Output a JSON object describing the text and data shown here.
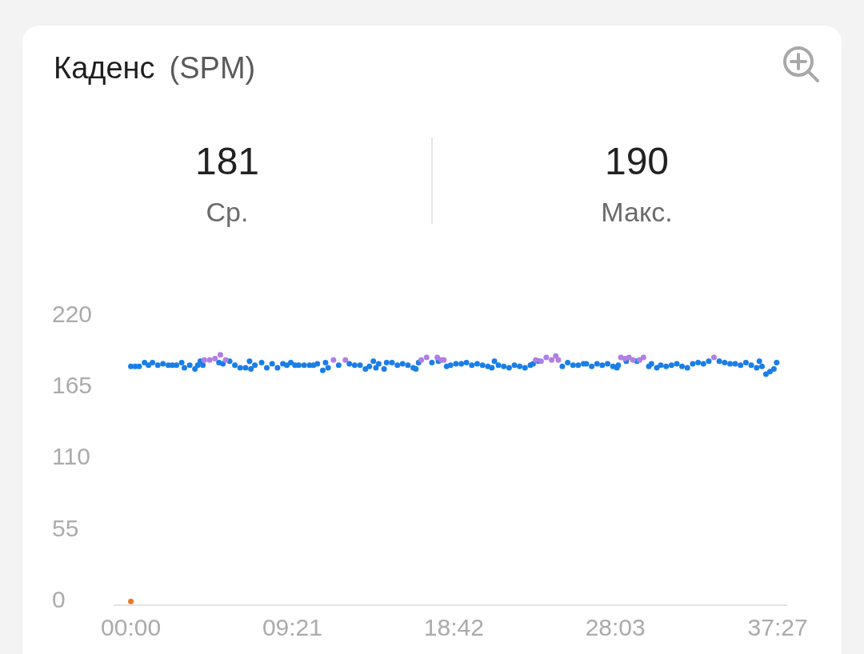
{
  "chart_data": {
    "type": "scatter",
    "title": "Каденс",
    "subtitle": "(SPM)",
    "annotations": [
      "181",
      "Ср.",
      "190",
      "Макс."
    ],
    "xlim": [
      -1,
      38
    ],
    "xticks": [
      {
        "value": 0,
        "label": "00:00"
      },
      {
        "value": 9.35,
        "label": "09:21"
      },
      {
        "value": 18.7,
        "label": "18:42"
      },
      {
        "value": 28.05,
        "label": "28:03"
      },
      {
        "value": 37.45,
        "label": "37:27"
      }
    ],
    "ylim": [
      -3,
      220
    ],
    "yticks": [
      0,
      55,
      110,
      165,
      220
    ],
    "marker": "circle",
    "series": [
      {
        "color": "#1a7ee6",
        "x": [
          0,
          0.25,
          0.48,
          0.79,
          1.02,
          1.25,
          1.56,
          1.86,
          2.17,
          2.4,
          2.64,
          2.94,
          3.1,
          3.41,
          3.71,
          3.87,
          4.02,
          4.17,
          5.1,
          5.33,
          5.72,
          6.02,
          6.33,
          6.64,
          6.87,
          6.95,
          7.18,
          7.57,
          7.87,
          8.18,
          8.49,
          8.8,
          9.03,
          9.26,
          9.5,
          9.72,
          10.03,
          10.34,
          10.57,
          10.8,
          11.11,
          11.27,
          11.42,
          12.03,
          12.65,
          12.96,
          13.27,
          13.58,
          13.81,
          14.04,
          14.19,
          14.35,
          14.66,
          14.81,
          15.12,
          15.43,
          15.73,
          16.04,
          16.35,
          16.5,
          16.66,
          17.43,
          17.81,
          18.28,
          18.51,
          18.82,
          19.13,
          19.43,
          19.74,
          20.05,
          20.36,
          20.67,
          20.9,
          21.05,
          21.28,
          21.59,
          21.9,
          22.21,
          22.51,
          22.82,
          23.13,
          23.29,
          23.59,
          24.98,
          25.29,
          25.6,
          25.9,
          26.21,
          26.37,
          26.68,
          26.99,
          27.29,
          27.6,
          27.91,
          28.14,
          28.22,
          28.68,
          29.3,
          29.99,
          30.14,
          30.45,
          30.68,
          30.99,
          31.3,
          31.61,
          31.91,
          32.22,
          32.53,
          32.84,
          33.15,
          33.46,
          34.07,
          34.38,
          34.69,
          34.99,
          35.3,
          35.61,
          35.92,
          36.23,
          36.39,
          36.54,
          36.77,
          37.0,
          37.23,
          37.39
        ],
        "values": [
          181,
          181,
          181,
          184,
          182,
          184,
          182,
          183,
          182,
          182,
          182,
          184,
          180,
          182,
          179,
          182,
          185,
          182,
          184,
          183,
          185,
          182,
          180,
          180,
          185,
          179,
          182,
          184,
          180,
          183,
          180,
          183,
          182,
          184,
          182,
          182,
          182,
          182,
          182,
          183,
          178,
          184,
          180,
          182,
          183,
          182,
          182,
          179,
          181,
          185,
          180,
          183,
          179,
          184,
          184,
          182,
          183,
          182,
          180,
          179,
          184,
          184,
          185,
          181,
          182,
          183,
          183,
          184,
          182,
          183,
          182,
          181,
          180,
          185,
          182,
          181,
          180,
          182,
          181,
          180,
          182,
          183,
          185,
          181,
          184,
          182,
          182,
          183,
          183,
          181,
          183,
          182,
          183,
          181,
          180,
          182,
          185,
          185,
          181,
          183,
          180,
          182,
          181,
          182,
          183,
          181,
          180,
          183,
          184,
          183,
          185,
          185,
          184,
          183,
          183,
          182,
          184,
          182,
          180,
          185,
          181,
          175,
          177,
          179,
          184
        ]
      },
      {
        "color": "#b07fe4",
        "x": [
          4.25,
          4.56,
          4.87,
          5.18,
          5.49,
          11.73,
          12.42,
          16.81,
          17.12,
          17.74,
          17.97,
          18.12,
          23.44,
          23.75,
          24.05,
          24.36,
          24.6,
          24.75,
          28.37,
          28.6,
          28.84,
          29.07,
          29.45,
          29.68,
          33.76
        ],
        "values": [
          186,
          186,
          187,
          190,
          186,
          186,
          186,
          186,
          188,
          188,
          186,
          186,
          186,
          185,
          188,
          186,
          189,
          186,
          188,
          187,
          188,
          186,
          186,
          188,
          188
        ]
      },
      {
        "color": "#e8792a",
        "x": [
          0
        ],
        "values": [
          0
        ]
      }
    ]
  }
}
